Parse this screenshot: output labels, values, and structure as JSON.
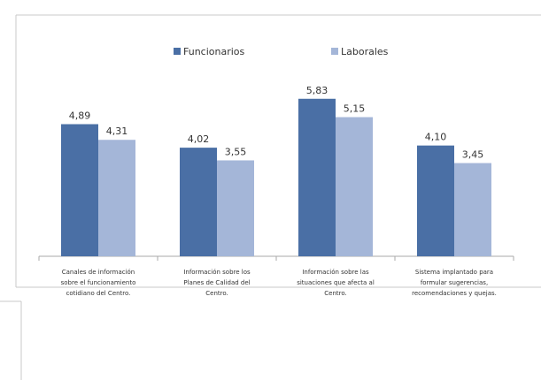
{
  "chart_data": {
    "type": "bar",
    "title": "",
    "xlabel": "",
    "ylabel": "",
    "ylim": [
      0,
      7
    ],
    "grid": false,
    "legend_position": "top-center",
    "categories": [
      [
        "Canales de información",
        "sobre el funcionamiento",
        "cotidiano del Centro."
      ],
      [
        "Información sobre los",
        "Planes de Calidad del",
        "Centro."
      ],
      [
        "Información sobre las",
        "situaciones que afecta al",
        "Centro."
      ],
      [
        "Sistema implantado para",
        "formular sugerencias,",
        "recomendaciones y quejas."
      ]
    ],
    "series": [
      {
        "name": "Funcionarios",
        "color": "#4a6fa5",
        "values": [
          4.89,
          4.02,
          5.83,
          4.1
        ],
        "labels": [
          "4,89",
          "4,02",
          "5,83",
          "4,10"
        ]
      },
      {
        "name": "Laborales",
        "color": "#a4b6d8",
        "values": [
          4.31,
          3.55,
          5.15,
          3.45
        ],
        "labels": [
          "4,31",
          "3,55",
          "5,15",
          "3,45"
        ]
      }
    ]
  }
}
